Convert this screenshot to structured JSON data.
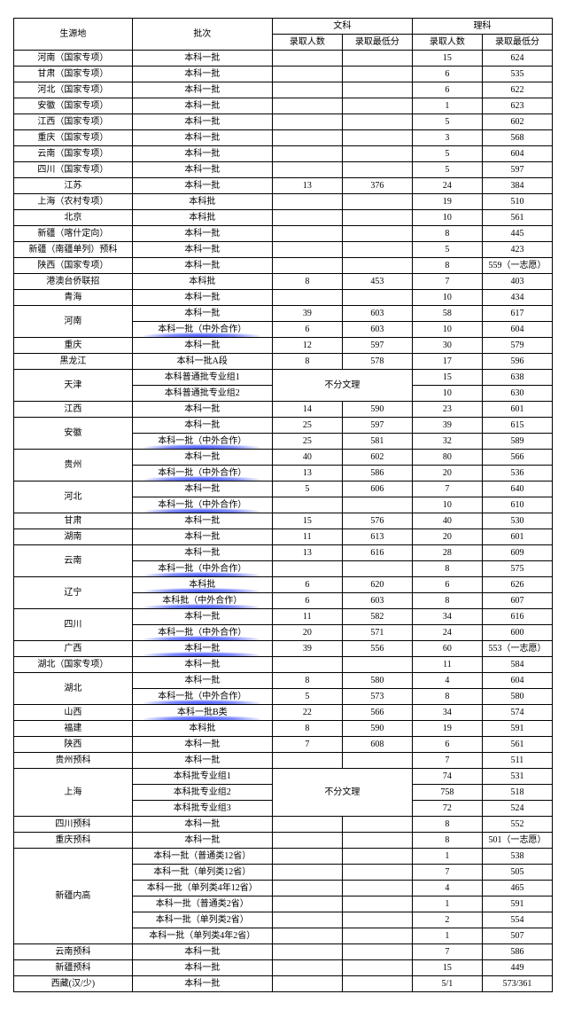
{
  "headers": {
    "region": "生源地",
    "batch": "批次",
    "arts": "文科",
    "sci": "理科",
    "count": "录取人数",
    "minScore": "录取最低分",
    "noSplit": "不分文理"
  },
  "highlightBatches": [
    "本科一批（中外合作）",
    "本科批（中外合作）",
    "本科一批B类",
    "本科一批A段",
    "本科批"
  ],
  "highlightKeys": [
    "河南|本科一批（中外合作）",
    "安徽|本科一批（中外合作）",
    "贵州|本科一批（中外合作）",
    "河北|本科一批（中外合作）",
    "云南|本科一批（中外合作）",
    "辽宁|本科批",
    "辽宁|本科批（中外合作）",
    "四川|本科一批（中外合作）",
    "广西|本科一批",
    "湖北|本科一批（中外合作）",
    "山西|本科一批B类"
  ],
  "rows": [
    {
      "region": "河南（国家专项）",
      "batch": "本科一批",
      "ac": "",
      "as": "",
      "sc": "15",
      "ss": "624"
    },
    {
      "region": "甘肃（国家专项）",
      "batch": "本科一批",
      "ac": "",
      "as": "",
      "sc": "6",
      "ss": "535"
    },
    {
      "region": "河北（国家专项）",
      "batch": "本科一批",
      "ac": "",
      "as": "",
      "sc": "6",
      "ss": "622"
    },
    {
      "region": "安徽（国家专项）",
      "batch": "本科一批",
      "ac": "",
      "as": "",
      "sc": "1",
      "ss": "623"
    },
    {
      "region": "江西（国家专项）",
      "batch": "本科一批",
      "ac": "",
      "as": "",
      "sc": "5",
      "ss": "602"
    },
    {
      "region": "重庆（国家专项）",
      "batch": "本科一批",
      "ac": "",
      "as": "",
      "sc": "3",
      "ss": "568"
    },
    {
      "region": "云南（国家专项）",
      "batch": "本科一批",
      "ac": "",
      "as": "",
      "sc": "5",
      "ss": "604"
    },
    {
      "region": "四川（国家专项）",
      "batch": "本科一批",
      "ac": "",
      "as": "",
      "sc": "5",
      "ss": "597"
    },
    {
      "region": "江苏",
      "batch": "本科一批",
      "ac": "13",
      "as": "376",
      "sc": "24",
      "ss": "384"
    },
    {
      "region": "上海（农村专项）",
      "batch": "本科批",
      "ac": "",
      "as": "",
      "sc": "19",
      "ss": "510"
    },
    {
      "region": "北京",
      "batch": "本科批",
      "ac": "",
      "as": "",
      "sc": "10",
      "ss": "561"
    },
    {
      "region": "新疆（喀什定向）",
      "batch": "本科一批",
      "ac": "",
      "as": "",
      "sc": "8",
      "ss": "445"
    },
    {
      "region": "新疆（南疆单列）预科",
      "batch": "本科一批",
      "ac": "",
      "as": "",
      "sc": "5",
      "ss": "423"
    },
    {
      "region": "陕西（国家专项）",
      "batch": "本科一批",
      "ac": "",
      "as": "",
      "sc": "8",
      "ss": "559（一志愿）"
    },
    {
      "region": "港澳台侨联招",
      "batch": "本科批",
      "ac": "8",
      "as": "453",
      "sc": "7",
      "ss": "403"
    },
    {
      "region": "青海",
      "batch": "本科一批",
      "ac": "",
      "as": "",
      "sc": "10",
      "ss": "434"
    },
    {
      "region": "河南",
      "rowspan": 2,
      "batch": "本科一批",
      "ac": "39",
      "as": "603",
      "sc": "58",
      "ss": "617"
    },
    {
      "batch": "本科一批（中外合作）",
      "ac": "6",
      "as": "603",
      "sc": "10",
      "ss": "604"
    },
    {
      "region": "重庆",
      "batch": "本科一批",
      "ac": "12",
      "as": "597",
      "sc": "30",
      "ss": "579"
    },
    {
      "region": "黑龙江",
      "batch": "本科一批A段",
      "ac": "8",
      "as": "578",
      "sc": "17",
      "ss": "596"
    },
    {
      "region": "天津",
      "rowspan": 2,
      "batch": "本科普通批专业组1",
      "noSplit": true,
      "noSplitRowspan": 2,
      "sc": "15",
      "ss": "638"
    },
    {
      "batch": "本科普通批专业组2",
      "sc": "10",
      "ss": "630"
    },
    {
      "region": "江西",
      "batch": "本科一批",
      "ac": "14",
      "as": "590",
      "sc": "23",
      "ss": "601"
    },
    {
      "region": "安徽",
      "rowspan": 2,
      "batch": "本科一批",
      "ac": "25",
      "as": "597",
      "sc": "39",
      "ss": "615"
    },
    {
      "batch": "本科一批（中外合作）",
      "ac": "25",
      "as": "581",
      "sc": "32",
      "ss": "589"
    },
    {
      "region": "贵州",
      "rowspan": 2,
      "batch": "本科一批",
      "ac": "40",
      "as": "602",
      "sc": "80",
      "ss": "566"
    },
    {
      "batch": "本科一批（中外合作）",
      "ac": "13",
      "as": "586",
      "sc": "20",
      "ss": "536"
    },
    {
      "region": "河北",
      "rowspan": 2,
      "batch": "本科一批",
      "ac": "5",
      "as": "606",
      "sc": "7",
      "ss": "640"
    },
    {
      "batch": "本科一批（中外合作）",
      "ac": "",
      "as": "",
      "sc": "10",
      "ss": "610"
    },
    {
      "region": "甘肃",
      "batch": "本科一批",
      "ac": "15",
      "as": "576",
      "sc": "40",
      "ss": "530"
    },
    {
      "region": "湖南",
      "batch": "本科一批",
      "ac": "11",
      "as": "613",
      "sc": "20",
      "ss": "601"
    },
    {
      "region": "云南",
      "rowspan": 2,
      "batch": "本科一批",
      "ac": "13",
      "as": "616",
      "sc": "28",
      "ss": "609"
    },
    {
      "batch": "本科一批（中外合作）",
      "ac": "",
      "as": "",
      "sc": "8",
      "ss": "575"
    },
    {
      "region": "辽宁",
      "rowspan": 2,
      "batch": "本科批",
      "ac": "6",
      "as": "620",
      "sc": "6",
      "ss": "626"
    },
    {
      "batch": "本科批（中外合作）",
      "ac": "6",
      "as": "603",
      "sc": "8",
      "ss": "607"
    },
    {
      "region": "四川",
      "rowspan": 2,
      "batch": "本科一批",
      "ac": "11",
      "as": "582",
      "sc": "34",
      "ss": "616"
    },
    {
      "batch": "本科一批（中外合作）",
      "ac": "20",
      "as": "571",
      "sc": "24",
      "ss": "600"
    },
    {
      "region": "广西",
      "batch": "本科一批",
      "ac": "39",
      "as": "556",
      "sc": "60",
      "ss": "553（一志愿）"
    },
    {
      "region": "湖北（国家专项）",
      "batch": "本科一批",
      "ac": "",
      "as": "",
      "sc": "11",
      "ss": "584"
    },
    {
      "region": "湖北",
      "rowspan": 2,
      "batch": "本科一批",
      "ac": "8",
      "as": "580",
      "sc": "4",
      "ss": "604"
    },
    {
      "batch": "本科一批（中外合作）",
      "ac": "5",
      "as": "573",
      "sc": "8",
      "ss": "580"
    },
    {
      "region": "山西",
      "batch": "本科一批B类",
      "ac": "22",
      "as": "566",
      "sc": "34",
      "ss": "574"
    },
    {
      "region": "福建",
      "batch": "本科批",
      "ac": "8",
      "as": "590",
      "sc": "19",
      "ss": "591"
    },
    {
      "region": "陕西",
      "batch": "本科一批",
      "ac": "7",
      "as": "608",
      "sc": "6",
      "ss": "561"
    },
    {
      "region": "贵州预科",
      "batch": "本科一批",
      "ac": "",
      "as": "",
      "sc": "7",
      "ss": "511"
    },
    {
      "region": "上海",
      "rowspan": 3,
      "batch": "本科批专业组1",
      "noSplit": true,
      "noSplitRowspan": 3,
      "sc": "74",
      "ss": "531"
    },
    {
      "batch": "本科批专业组2",
      "sc": "758",
      "ss": "518"
    },
    {
      "batch": "本科批专业组3",
      "sc": "72",
      "ss": "524"
    },
    {
      "region": "四川预科",
      "batch": "本科一批",
      "ac": "",
      "as": "",
      "sc": "8",
      "ss": "552"
    },
    {
      "region": "重庆预科",
      "batch": "本科一批",
      "ac": "",
      "as": "",
      "sc": "8",
      "ss": "501（一志愿）"
    },
    {
      "region": "新疆内高",
      "rowspan": 6,
      "batch": "本科一批（普通类12省）",
      "ac": "",
      "as": "",
      "sc": "1",
      "ss": "538"
    },
    {
      "batch": "本科一批（单列类12省）",
      "ac": "",
      "as": "",
      "sc": "7",
      "ss": "505"
    },
    {
      "batch": "本科一批（单列类4年12省）",
      "ac": "",
      "as": "",
      "sc": "4",
      "ss": "465"
    },
    {
      "batch": "本科一批（普通类2省）",
      "ac": "",
      "as": "",
      "sc": "1",
      "ss": "591"
    },
    {
      "batch": "本科一批（单列类2省）",
      "ac": "",
      "as": "",
      "sc": "2",
      "ss": "554"
    },
    {
      "batch": "本科一批（单列类4年2省）",
      "ac": "",
      "as": "",
      "sc": "1",
      "ss": "507"
    },
    {
      "region": "云南预科",
      "batch": "本科一批",
      "ac": "",
      "as": "",
      "sc": "7",
      "ss": "586"
    },
    {
      "region": "新疆预科",
      "batch": "本科一批",
      "ac": "",
      "as": "",
      "sc": "15",
      "ss": "449"
    },
    {
      "region": "西藏(汉/少)",
      "batch": "本科一批",
      "ac": "",
      "as": "",
      "sc": "5/1",
      "ss": "573/361"
    }
  ]
}
